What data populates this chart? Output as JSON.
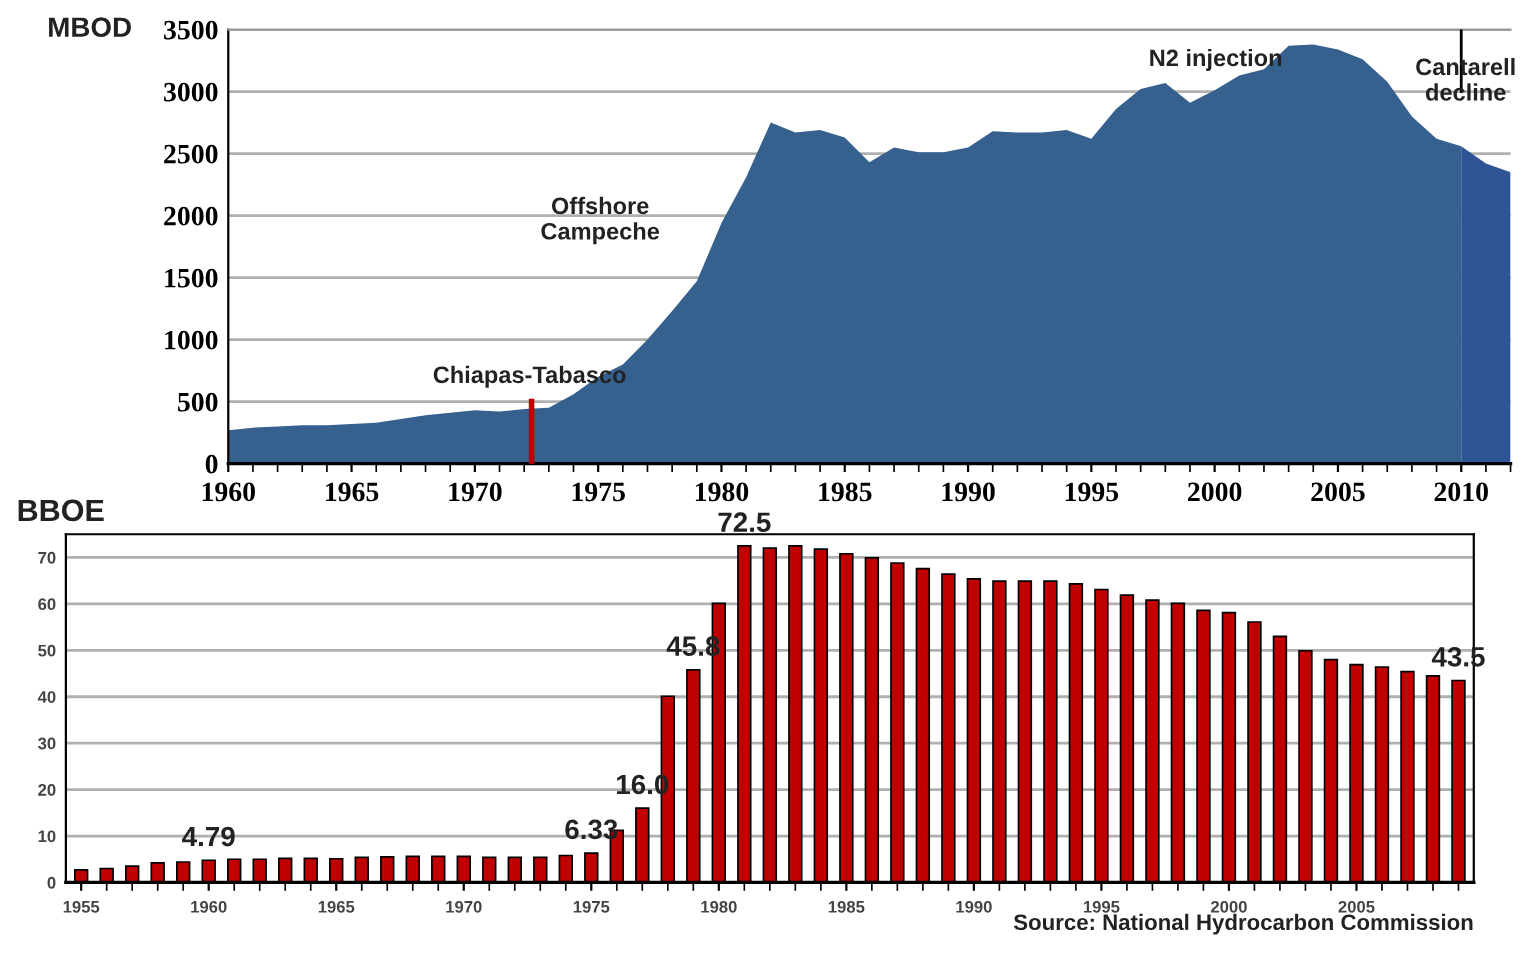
{
  "chart_data": [
    {
      "type": "area",
      "ylabel": "MBOD",
      "xlim": [
        1960,
        2012
      ],
      "xticks": [
        1960,
        1965,
        1970,
        1975,
        1980,
        1985,
        1990,
        1995,
        2000,
        2005,
        2010
      ],
      "ylim": [
        0,
        3500
      ],
      "yticks": [
        0,
        500,
        1000,
        1500,
        2000,
        2500,
        3000,
        3500
      ],
      "grid": "y",
      "legend": false,
      "series": [
        {
          "color": "#36618f",
          "x": [
            1960,
            1961,
            1962,
            1963,
            1964,
            1965,
            1966,
            1967,
            1968,
            1969,
            1970,
            1971,
            1972,
            1973,
            1974,
            1975,
            1976,
            1977,
            1978,
            1979,
            1980,
            1981,
            1982,
            1983,
            1984,
            1985,
            1986,
            1987,
            1988,
            1989,
            1990,
            1991,
            1992,
            1993,
            1994,
            1995,
            1996,
            1997,
            1998,
            1999,
            2000,
            2001,
            2002,
            2003,
            2004,
            2005,
            2006,
            2007,
            2008,
            2009,
            2010
          ],
          "values": [
            270,
            290,
            300,
            310,
            310,
            320,
            330,
            360,
            390,
            410,
            430,
            420,
            440,
            450,
            560,
            700,
            800,
            1000,
            1230,
            1470,
            1940,
            2310,
            2750,
            2670,
            2690,
            2630,
            2430,
            2550,
            2510,
            2510,
            2550,
            2680,
            2670,
            2670,
            2690,
            2620,
            2860,
            3020,
            3070,
            2910,
            3010,
            3130,
            3180,
            3370,
            3380,
            3340,
            3260,
            3080,
            2800,
            2620,
            2560
          ]
        },
        {
          "color": "#2f5496",
          "x": [
            2010,
            2011,
            2012
          ],
          "values": [
            2560,
            2420,
            2350
          ]
        },
        {
          "type": "line",
          "color": "#c00000",
          "x": [
            1972.3,
            1972.3
          ],
          "values": [
            0,
            500
          ]
        },
        {
          "type": "line",
          "color": "#000000",
          "x": [
            2010,
            2010
          ],
          "values": [
            3500,
            3000
          ]
        }
      ],
      "annotations": [
        "Chiapas-Tabasco",
        "Offshore\nCampeche",
        "N2 injection",
        "Cantarell\ndecline"
      ]
    },
    {
      "type": "bar",
      "ylabel": "BBOE",
      "xlim": [
        1954.4,
        2009.6
      ],
      "xticks": [
        1955,
        1960,
        1965,
        1970,
        1975,
        1980,
        1985,
        1990,
        1995,
        2000,
        2005
      ],
      "ylim": [
        0,
        75
      ],
      "yticks": [
        0,
        10,
        20,
        30,
        40,
        50,
        60,
        70
      ],
      "grid": "y",
      "legend": false,
      "x": [
        1955,
        1956,
        1957,
        1958,
        1959,
        1960,
        1961,
        1962,
        1963,
        1964,
        1965,
        1966,
        1967,
        1968,
        1969,
        1970,
        1971,
        1972,
        1973,
        1974,
        1975,
        1976,
        1977,
        1978,
        1979,
        1980,
        1981,
        1982,
        1983,
        1984,
        1985,
        1986,
        1987,
        1988,
        1989,
        1990,
        1991,
        1992,
        1993,
        1994,
        1995,
        1996,
        1997,
        1998,
        1999,
        2000,
        2001,
        2002,
        2003,
        2004,
        2005,
        2006,
        2007,
        2008,
        2009
      ],
      "series": [
        {
          "color": "#c00000",
          "values": [
            2.7,
            3.0,
            3.5,
            4.2,
            4.4,
            4.79,
            5.0,
            5.0,
            5.2,
            5.2,
            5.1,
            5.4,
            5.5,
            5.6,
            5.6,
            5.6,
            5.4,
            5.4,
            5.4,
            5.8,
            6.33,
            11.2,
            16.0,
            40.1,
            45.8,
            60.1,
            72.5,
            72.0,
            72.5,
            71.8,
            70.8,
            69.9,
            68.8,
            67.6,
            66.4,
            65.4,
            64.9,
            64.9,
            64.9,
            64.3,
            63.1,
            61.9,
            60.8,
            60.1,
            58.6,
            58.1,
            56.1,
            53.0,
            49.9,
            48.0,
            46.9,
            46.4,
            45.4,
            44.5,
            43.5
          ],
          "value_labels": [
            null,
            null,
            null,
            null,
            null,
            "4.79",
            null,
            null,
            null,
            null,
            null,
            null,
            null,
            null,
            null,
            null,
            null,
            null,
            null,
            null,
            "6.33",
            null,
            "16.0",
            null,
            "45.8",
            null,
            "72.5",
            null,
            null,
            null,
            null,
            null,
            null,
            null,
            null,
            null,
            null,
            null,
            null,
            null,
            null,
            null,
            null,
            null,
            null,
            null,
            null,
            null,
            null,
            null,
            null,
            null,
            null,
            null,
            "43.5"
          ]
        }
      ],
      "annotations": [
        "Source: National Hydrocarbon Commission"
      ]
    }
  ]
}
